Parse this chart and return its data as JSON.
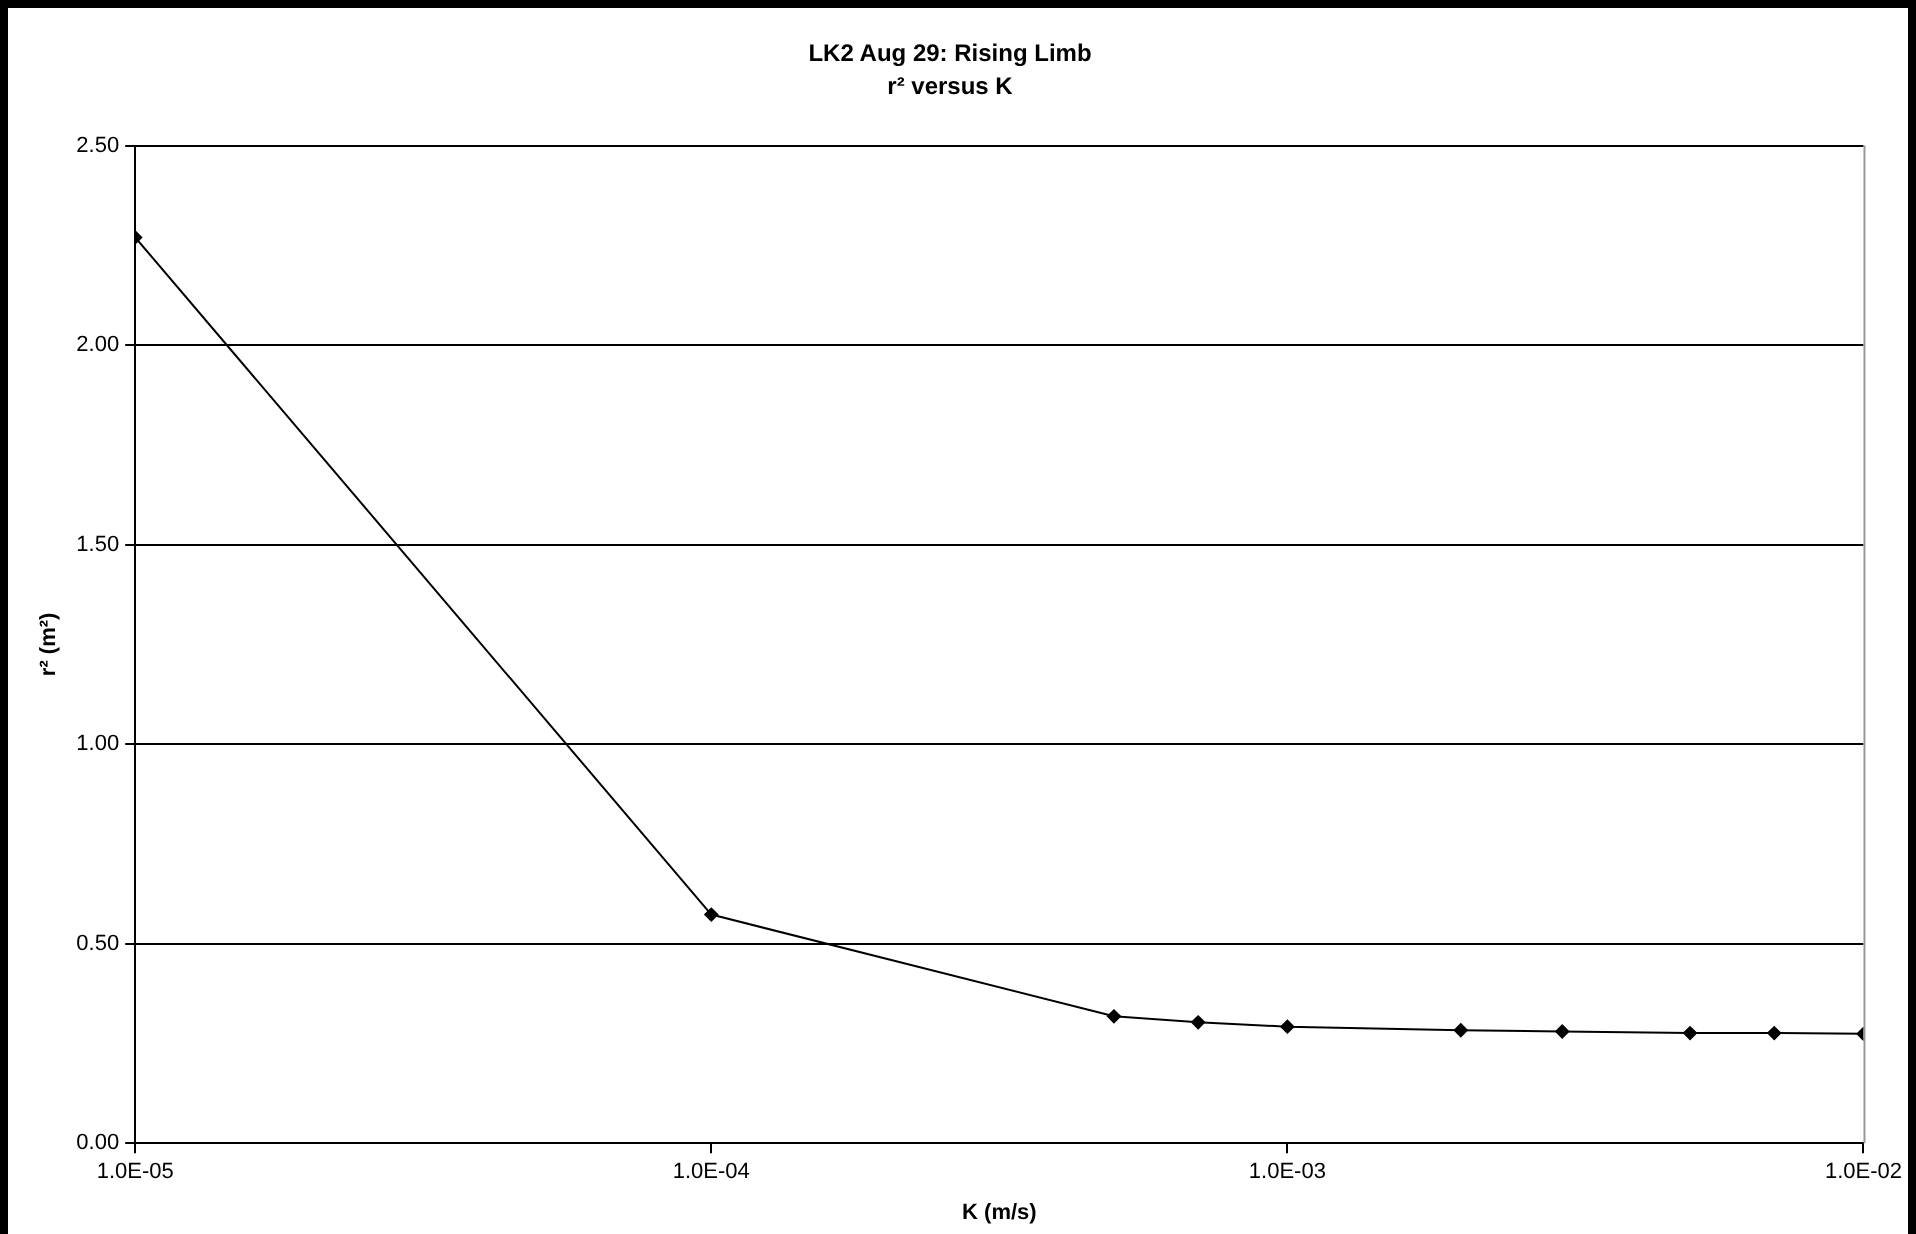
{
  "chart_data": {
    "type": "line",
    "title": "LK2 Aug 29: Rising Limb",
    "subtitle": "r² versus K",
    "xlabel": "K (m/s)",
    "ylabel": "r² (m²)",
    "x": [
      1e-05,
      0.0001,
      0.0005,
      0.0007,
      0.001,
      0.002,
      0.003,
      0.005,
      0.007,
      0.01
    ],
    "series": [
      {
        "color": "#000000",
        "values": [
          2.27,
          0.573,
          0.318,
          0.303,
          0.292,
          0.283,
          0.28,
          0.276,
          0.276,
          0.274
        ]
      }
    ],
    "log": "x",
    "xlim": [
      1e-05,
      0.01
    ],
    "xticks": [
      {
        "value": 1e-05,
        "label": "1.0E-05"
      },
      {
        "value": 0.0001,
        "label": "1.0E-04"
      },
      {
        "value": 0.001,
        "label": "1.0E-03"
      },
      {
        "value": 0.01,
        "label": "1.0E-02"
      }
    ],
    "ylim": [
      0,
      2.5
    ],
    "yticks": [
      {
        "value": 0,
        "label": "0.00"
      },
      {
        "value": 0.5,
        "label": "0.50"
      },
      {
        "value": 1,
        "label": "1.00"
      },
      {
        "value": 1.5,
        "label": "1.50"
      },
      {
        "value": 2,
        "label": "2.00"
      },
      {
        "value": 2.5,
        "label": "2.50"
      }
    ],
    "grid": "y",
    "legend": false,
    "marker": "diamond",
    "line_style": "solid"
  }
}
